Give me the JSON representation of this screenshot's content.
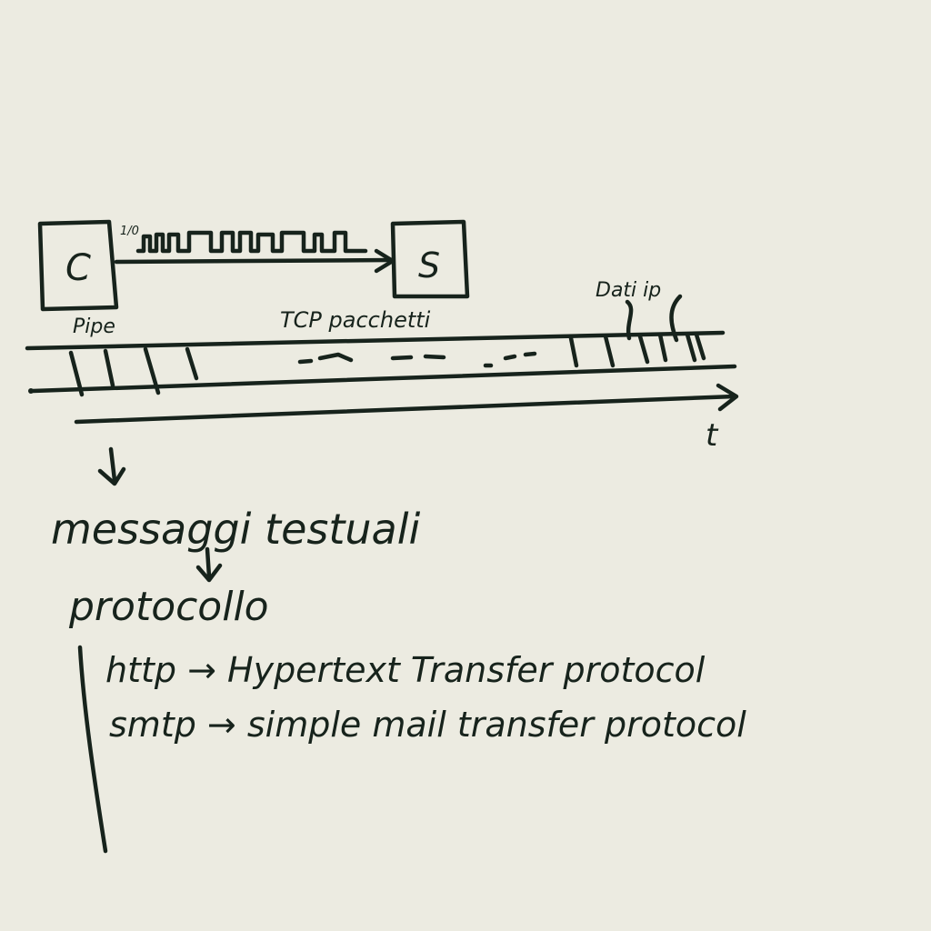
{
  "diagram": {
    "client_label": "C",
    "server_label": "S",
    "pipe_label": "Pipe",
    "signal_label": "1/0",
    "tcp_label": "TCP pacchetti",
    "data_label": "Dati ip",
    "time_label": "t"
  },
  "notes": {
    "messages": "messaggi testuali",
    "protocols": "protocollo",
    "items": [
      "http → Hypertext Transfer protocol",
      "smtp → simple mail transfer protocol"
    ]
  },
  "colors": {
    "paper": "#ecebe1",
    "ink": "#17231c"
  }
}
